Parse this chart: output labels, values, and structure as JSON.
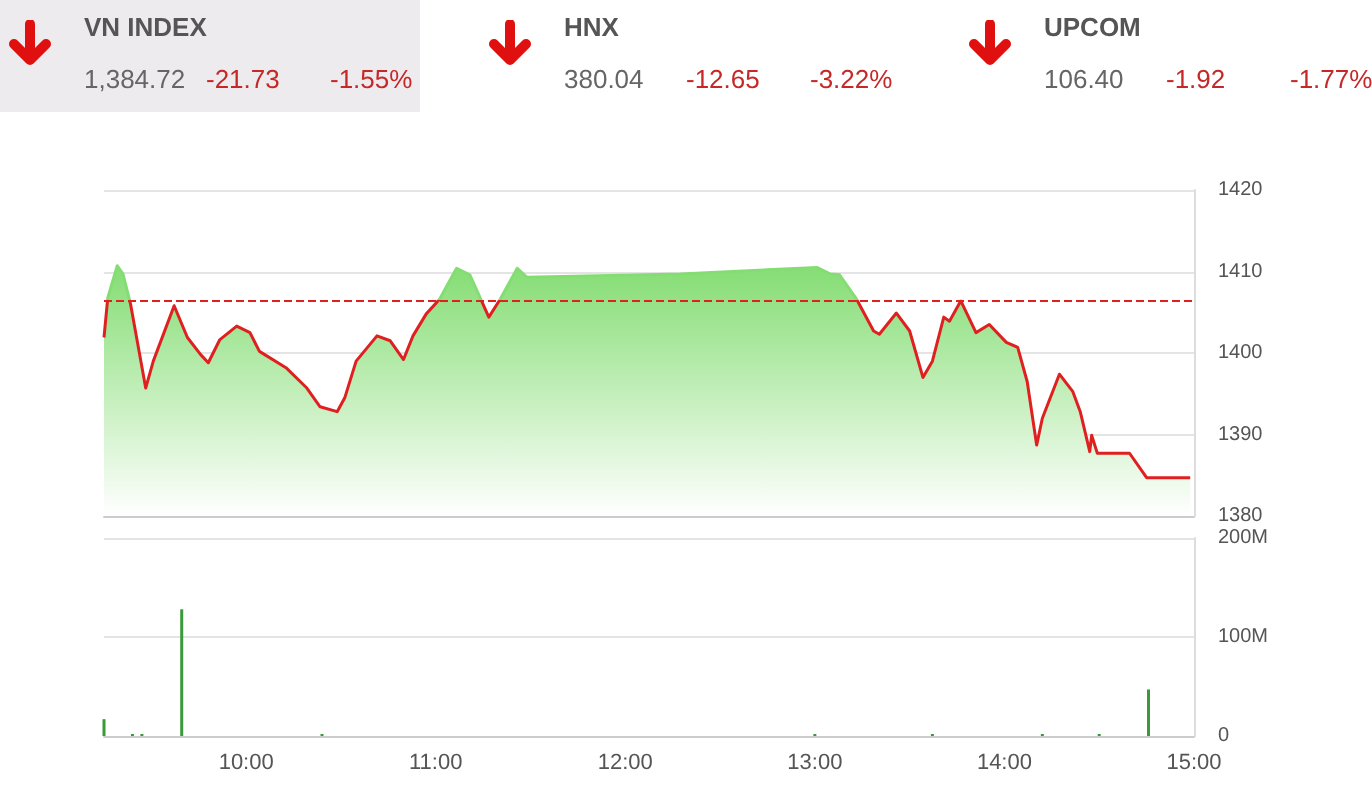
{
  "chart_data": [
    {
      "type": "other",
      "title": "VN INDEX",
      "annotations": [
        "1,384.72",
        "-21.73",
        "-1.55%"
      ]
    },
    {
      "type": "other",
      "title": "HNX",
      "annotations": [
        "380.04",
        "-12.65",
        "-3.22%"
      ]
    },
    {
      "type": "other",
      "title": "UPCOM",
      "annotations": [
        "106.40",
        "-1.92",
        "-1.77%"
      ]
    },
    {
      "type": "area",
      "x": [
        9.25,
        9.27,
        9.32,
        9.35,
        9.39,
        9.47,
        9.51,
        9.62,
        9.69,
        9.76,
        9.8,
        9.86,
        9.95,
        10.02,
        10.07,
        10.21,
        10.32,
        10.39,
        10.48,
        10.52,
        10.58,
        10.69,
        10.76,
        10.83,
        10.88,
        10.95,
        11.02,
        11.11,
        11.18,
        11.28,
        11.34,
        11.43,
        11.48,
        12.29,
        13.01,
        13.08,
        13.13,
        13.22,
        13.31,
        13.34,
        13.43,
        13.5,
        13.57,
        13.62,
        13.68,
        13.71,
        13.77,
        13.85,
        13.92,
        14.01,
        14.07,
        14.12,
        14.17,
        14.2,
        14.29,
        14.36,
        14.4,
        14.45,
        14.46,
        14.49,
        14.66,
        14.75,
        14.98
      ],
      "series": [
        {
          "color": "#84dd73",
          "values": [
            1401.9,
            1406.8,
            1410.7,
            1409.7,
            1406.0,
            1395.7,
            1399.0,
            1405.8,
            1401.9,
            1399.8,
            1398.8,
            1401.6,
            1403.3,
            1402.5,
            1400.2,
            1398.2,
            1395.7,
            1393.4,
            1392.8,
            1394.5,
            1399.0,
            1402.1,
            1401.5,
            1399.2,
            1402.1,
            1404.8,
            1406.6,
            1410.4,
            1409.6,
            1404.4,
            1406.6,
            1410.4,
            1409.3,
            1409.7,
            1410.5,
            1409.7,
            1409.6,
            1406.6,
            1402.7,
            1402.3,
            1404.9,
            1402.7,
            1397.0,
            1399.0,
            1404.4,
            1403.9,
            1406.4,
            1402.5,
            1403.5,
            1401.3,
            1400.7,
            1396.5,
            1388.7,
            1392.0,
            1397.4,
            1395.3,
            1392.8,
            1387.9,
            1389.9,
            1387.7,
            1387.7,
            1384.7,
            1384.7
          ]
        }
      ],
      "xlim": [
        9.25,
        15
      ],
      "ylim": [
        1380,
        1420
      ],
      "yticks": [
        1380,
        1390,
        1400,
        1410,
        1420
      ],
      "ref_lines": [
        {
          "axis": "y",
          "value": 1406.45,
          "color": "#e02020",
          "line_style": "dashed"
        }
      ],
      "grid": "y",
      "tick_labels": "y"
    },
    {
      "type": "bar",
      "x": [
        9.25,
        9.4,
        9.45,
        9.66,
        10.4,
        13.0,
        13.62,
        14.2,
        14.5,
        14.76
      ],
      "series": [
        {
          "color": "#3a9a3a",
          "values": [
            17,
            2,
            2,
            128,
            2,
            2,
            2,
            2,
            2,
            47
          ]
        }
      ],
      "xlim": [
        9.25,
        15
      ],
      "xticks": [
        {
          "value": 10,
          "label": "10:00"
        },
        {
          "value": 11,
          "label": "11:00"
        },
        {
          "value": 12,
          "label": "12:00"
        },
        {
          "value": 13,
          "label": "13:00"
        },
        {
          "value": 14,
          "label": "14:00"
        },
        {
          "value": 15,
          "label": "15:00"
        }
      ],
      "ylim": [
        0,
        200
      ],
      "yticks": [
        0,
        {
          "value": 100,
          "label": "100M"
        },
        {
          "value": 200,
          "label": "200M"
        }
      ],
      "grid": "y"
    }
  ]
}
